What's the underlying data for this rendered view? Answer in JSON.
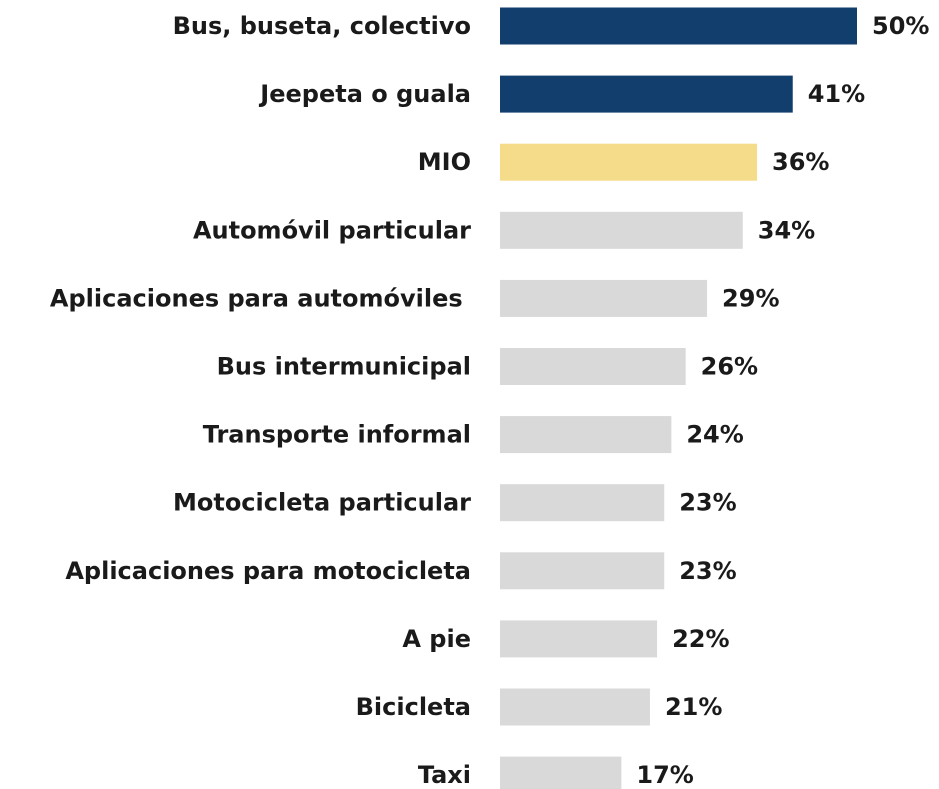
{
  "chart_data": {
    "type": "bar",
    "orientation": "horizontal",
    "categories": [
      "Bus, buseta, colectivo",
      "Jeepeta o guala",
      "MIO",
      "Automóvil particular",
      "Aplicaciones para automóviles ",
      "Bus intermunicipal",
      "Transporte informal",
      "Motocicleta particular",
      "Aplicaciones para motocicleta",
      "A pie",
      "Bicicleta",
      "Taxi"
    ],
    "values": [
      50,
      41,
      36,
      34,
      29,
      26,
      24,
      23,
      23,
      22,
      21,
      17
    ],
    "value_labels": [
      "50%",
      "41%",
      "36%",
      "34%",
      "29%",
      "26%",
      "24%",
      "23%",
      "23%",
      "22%",
      "21%",
      "17%"
    ],
    "colors": [
      "#123e6e",
      "#123e6e",
      "#f5dc8b",
      "#d9d9d9",
      "#d9d9d9",
      "#d9d9d9",
      "#d9d9d9",
      "#d9d9d9",
      "#d9d9d9",
      "#d9d9d9",
      "#d9d9d9",
      "#d9d9d9"
    ]
  }
}
